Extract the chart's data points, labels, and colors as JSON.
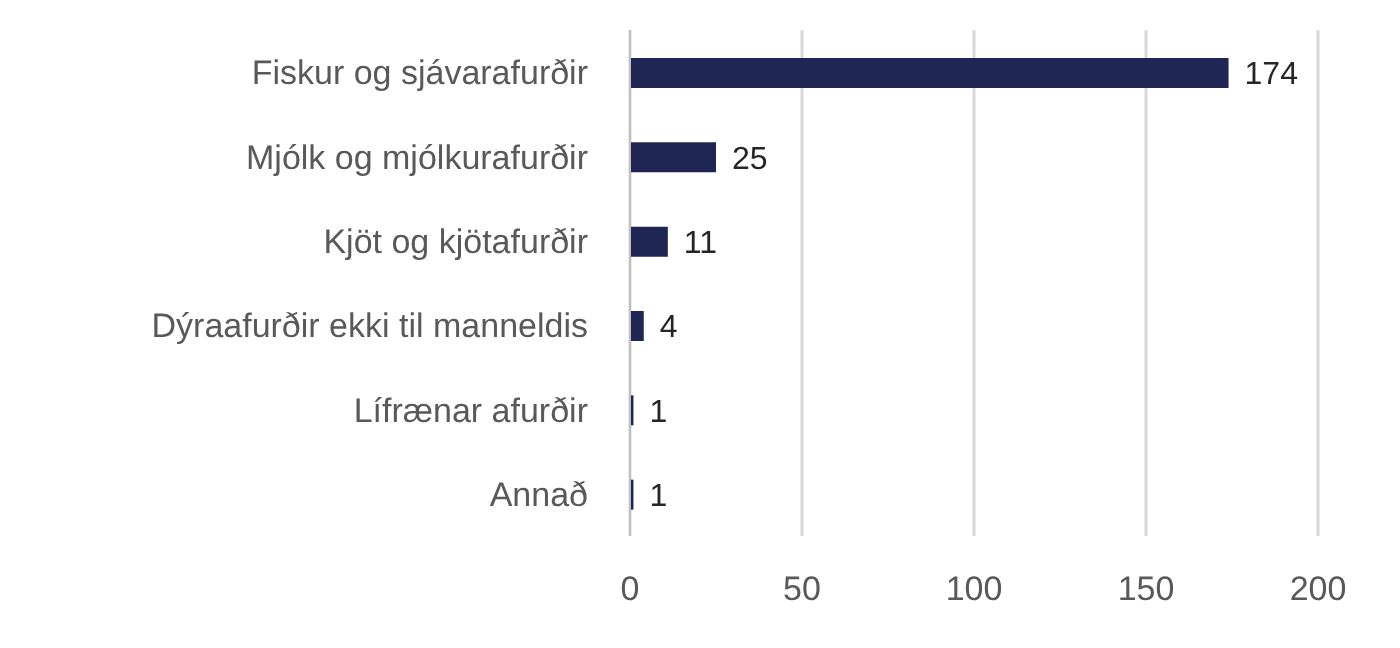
{
  "chart_data": {
    "type": "bar",
    "orientation": "horizontal",
    "categories": [
      "Fiskur og sjávarafurðir",
      "Mjólk og mjólkurafurðir",
      "Kjöt og kjötafurðir",
      "Dýraafurðir ekki til manneldis",
      "Lífrænar afurðir",
      "Annað"
    ],
    "values": [
      174,
      25,
      11,
      4,
      1,
      1
    ],
    "color": "#1f2654",
    "xlim": [
      0,
      200
    ],
    "xticks": [
      0,
      50,
      100,
      150,
      200
    ],
    "grid": "x",
    "data_labels": true
  }
}
